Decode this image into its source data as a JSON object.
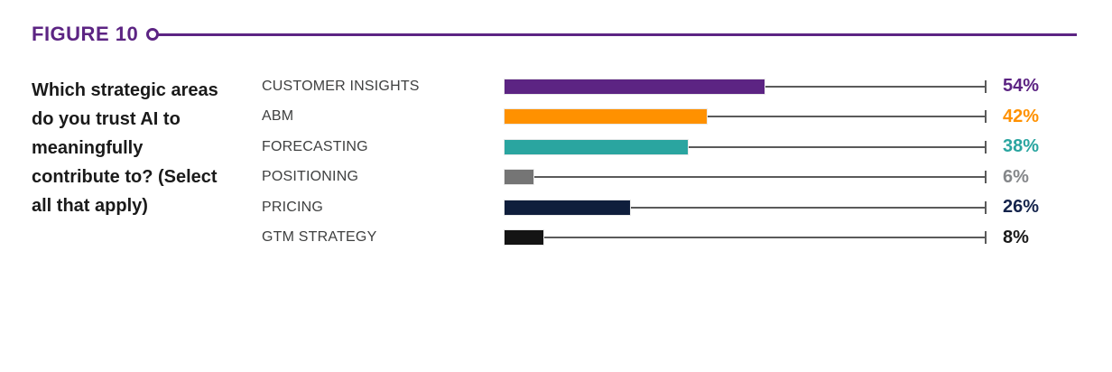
{
  "figure": {
    "label": "FIGURE 10"
  },
  "question": "Which strategic areas do you trust AI to meaningfully contribute to? (Select all that apply)",
  "colors": {
    "accent": "#5C2483",
    "track": "#5a5a5a",
    "question_text": "#1a1a1a",
    "category_text": "#3f4040"
  },
  "chart_data": {
    "type": "bar",
    "orientation": "horizontal",
    "title": "Which strategic areas do you trust AI to meaningfully contribute to? (Select all that apply)",
    "xlabel": "",
    "ylabel": "",
    "xlim": [
      0,
      100
    ],
    "grid": false,
    "legend": false,
    "categories": [
      "CUSTOMER INSIGHTS",
      "ABM",
      "FORECASTING",
      "POSITIONING",
      "PRICING",
      "GTM STRATEGY"
    ],
    "values": [
      54,
      42,
      38,
      6,
      26,
      8
    ],
    "value_labels": [
      "54%",
      "42%",
      "38%",
      "6%",
      "26%",
      "8%"
    ],
    "bar_colors": [
      "#5C2483",
      "#FF9100",
      "#2AA5A0",
      "#757575",
      "#0F1E3C",
      "#141414"
    ],
    "value_label_colors": [
      "#5C2483",
      "#FF9100",
      "#2AA5A0",
      "#85878A",
      "#15244C",
      "#1A1A1A"
    ]
  }
}
